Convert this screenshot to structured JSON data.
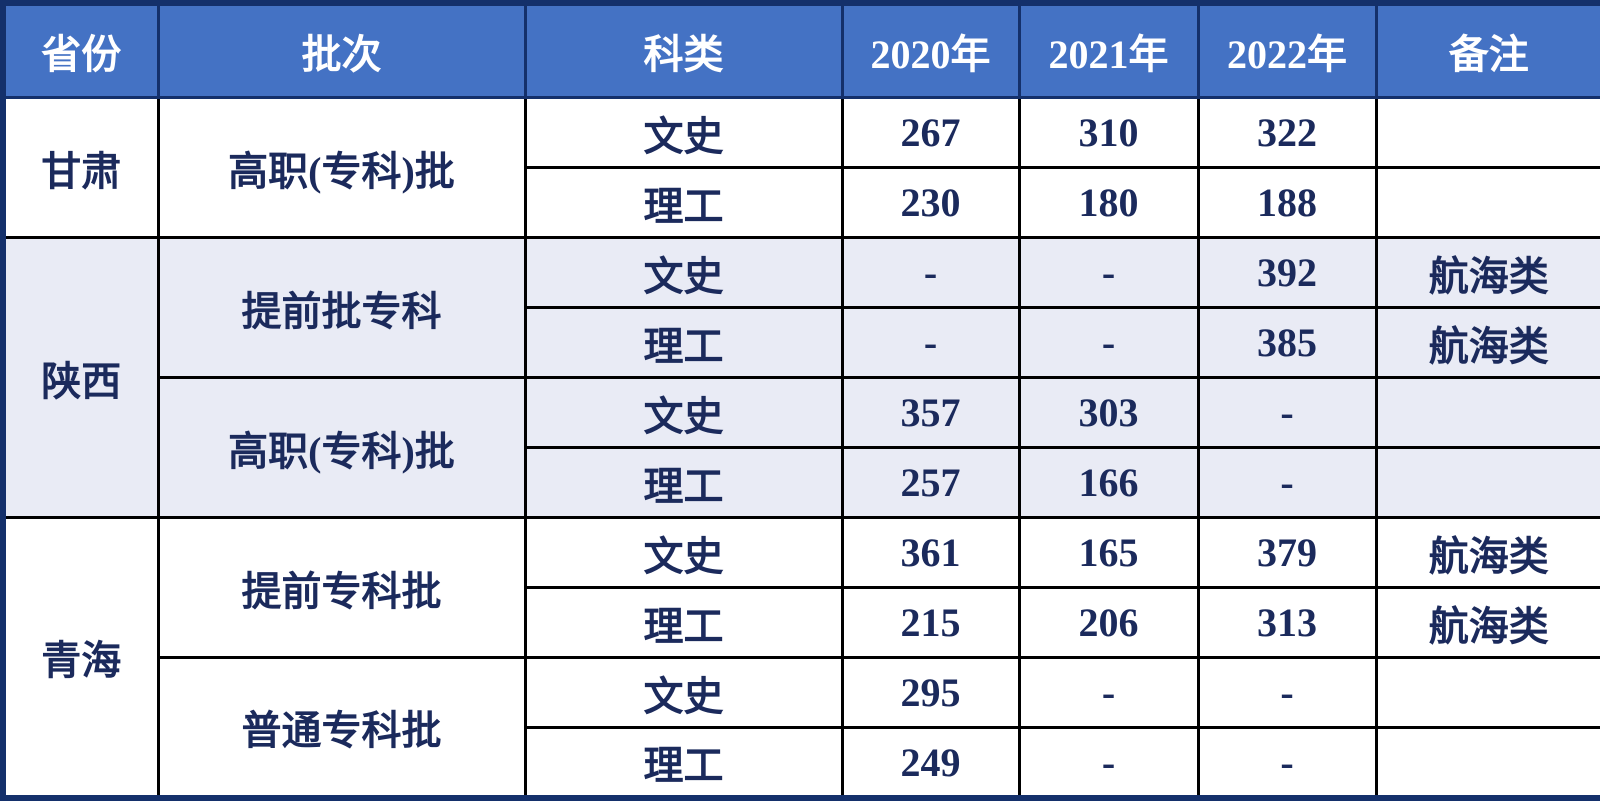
{
  "header": [
    "省份",
    "批次",
    "科类",
    "2020年",
    "2021年",
    "2022年",
    "备注"
  ],
  "provinces": [
    {
      "name": "甘肃",
      "batches": [
        {
          "name": "高职(专科)批",
          "rows": [
            {
              "subject": "文史",
              "values": [
                267,
                310,
                322
              ]
            },
            {
              "subject": "理工",
              "values": [
                230,
                180,
                188
              ]
            }
          ]
        }
      ]
    },
    {
      "name": "陕西",
      "batches": [
        {
          "name": "提前批专科",
          "rows": [
            {
              "subject": "文史",
              "values": [
                "-",
                "-",
                392
              ],
              "note": "航海类"
            },
            {
              "subject": "理工",
              "values": [
                "-",
                "-",
                385
              ],
              "note": "航海类"
            }
          ]
        },
        {
          "name": "高职(专科)批",
          "rows": [
            {
              "subject": "文史",
              "values": [
                357,
                303,
                "-"
              ]
            },
            {
              "subject": "理工",
              "values": [
                257,
                166,
                "-"
              ]
            }
          ]
        }
      ]
    },
    {
      "name": "青海",
      "batches": [
        {
          "name": "提前专科批",
          "rows": [
            {
              "subject": "文史",
              "values": [
                361,
                165,
                379
              ],
              "note": "航海类"
            },
            {
              "subject": "理工",
              "values": [
                215,
                206,
                313
              ],
              "note": "航海类"
            }
          ]
        },
        {
          "name": "普通专科批",
          "rows": [
            {
              "subject": "文史",
              "values": [
                295,
                "-",
                "-"
              ]
            },
            {
              "subject": "理工",
              "values": [
                249,
                "-",
                "-"
              ]
            }
          ]
        }
      ]
    }
  ]
}
